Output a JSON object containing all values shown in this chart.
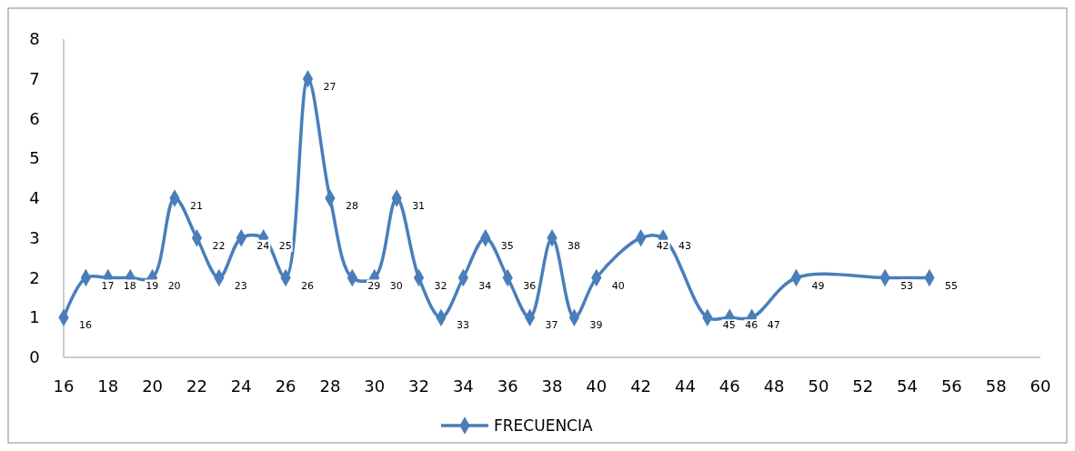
{
  "chart_data": {
    "type": "line",
    "x": [
      16,
      17,
      18,
      19,
      20,
      21,
      22,
      23,
      24,
      25,
      26,
      27,
      28,
      29,
      30,
      31,
      32,
      33,
      34,
      35,
      36,
      37,
      38,
      39,
      40,
      42,
      43,
      45,
      46,
      47,
      49,
      53,
      55
    ],
    "series": [
      {
        "name": "FRECUENCIA",
        "color": "#4a7ebb",
        "values": [
          1,
          2,
          2,
          2,
          2,
          4,
          3,
          2,
          3,
          3,
          2,
          7,
          4,
          2,
          2,
          4,
          2,
          1,
          2,
          3,
          2,
          1,
          3,
          1,
          2,
          3,
          3,
          1,
          1,
          1,
          2,
          2,
          2
        ]
      }
    ],
    "annotations": [
      {
        "text": "16",
        "x": 16,
        "y": 1
      },
      {
        "text": "17",
        "x": 17,
        "y": 2
      },
      {
        "text": "18",
        "x": 18,
        "y": 2
      },
      {
        "text": "19",
        "x": 19,
        "y": 2
      },
      {
        "text": "20",
        "x": 20,
        "y": 2
      },
      {
        "text": "21",
        "x": 21,
        "y": 4
      },
      {
        "text": "22",
        "x": 22,
        "y": 3
      },
      {
        "text": "23",
        "x": 23,
        "y": 2
      },
      {
        "text": "24",
        "x": 24,
        "y": 3
      },
      {
        "text": "25",
        "x": 25,
        "y": 3
      },
      {
        "text": "26",
        "x": 26,
        "y": 2
      },
      {
        "text": "27",
        "x": 27,
        "y": 7
      },
      {
        "text": "28",
        "x": 28,
        "y": 4
      },
      {
        "text": "29",
        "x": 29,
        "y": 2
      },
      {
        "text": "30",
        "x": 30,
        "y": 2
      },
      {
        "text": "31",
        "x": 31,
        "y": 4
      },
      {
        "text": "32",
        "x": 32,
        "y": 2
      },
      {
        "text": "33",
        "x": 33,
        "y": 1
      },
      {
        "text": "34",
        "x": 34,
        "y": 2
      },
      {
        "text": "35",
        "x": 35,
        "y": 3
      },
      {
        "text": "36",
        "x": 36,
        "y": 2
      },
      {
        "text": "37",
        "x": 37,
        "y": 1
      },
      {
        "text": "38",
        "x": 38,
        "y": 3
      },
      {
        "text": "39",
        "x": 39,
        "y": 1
      },
      {
        "text": "40",
        "x": 40,
        "y": 2
      },
      {
        "text": "42",
        "x": 42,
        "y": 3
      },
      {
        "text": "43",
        "x": 43,
        "y": 3
      },
      {
        "text": "45",
        "x": 45,
        "y": 1
      },
      {
        "text": "46",
        "x": 46,
        "y": 1
      },
      {
        "text": "47",
        "x": 47,
        "y": 1
      },
      {
        "text": "49",
        "x": 49,
        "y": 2
      },
      {
        "text": "53",
        "x": 53,
        "y": 2
      },
      {
        "text": "55",
        "x": 55,
        "y": 2
      }
    ],
    "xlim": [
      16,
      60
    ],
    "xticks": [
      16,
      18,
      20,
      22,
      24,
      26,
      28,
      30,
      32,
      34,
      36,
      38,
      40,
      42,
      44,
      46,
      48,
      50,
      52,
      54,
      56,
      58,
      60
    ],
    "ylim": [
      0,
      8
    ],
    "yticks": [
      0,
      1,
      2,
      3,
      4,
      5,
      6,
      7,
      8
    ],
    "grid": false,
    "legend": "bottom",
    "marker": "diamond",
    "line_style": "solid"
  }
}
